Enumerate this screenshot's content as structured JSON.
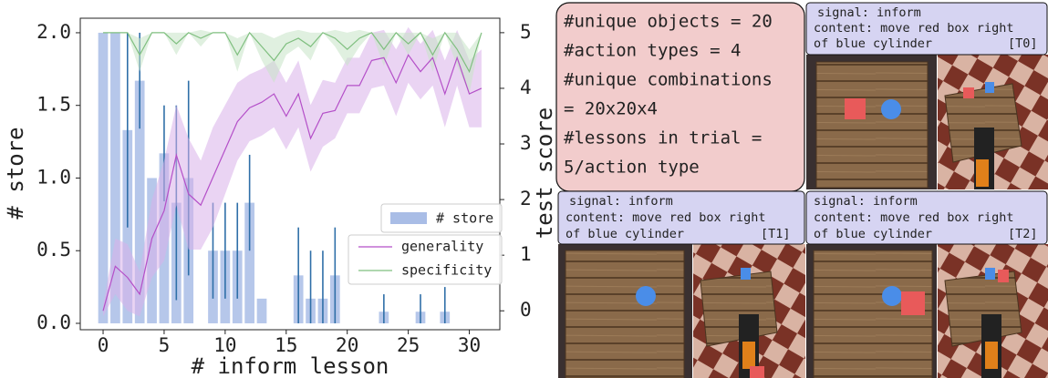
{
  "chart_data": {
    "type": "bar",
    "xlabel": "# inform lesson",
    "ylabel": "# store",
    "y2label": "test score",
    "x": [
      0,
      1,
      2,
      3,
      4,
      5,
      6,
      7,
      8,
      9,
      10,
      11,
      12,
      13,
      14,
      15,
      16,
      17,
      18,
      19,
      20,
      21,
      22,
      23,
      24,
      25,
      26,
      27,
      28,
      29,
      30,
      31
    ],
    "series": [
      {
        "name": "# store",
        "type": "bar",
        "color": "#a9bde6",
        "error_color": "#2f6fa8",
        "values": [
          2.0,
          2.0,
          1.33,
          1.67,
          1.0,
          1.17,
          0.83,
          1.0,
          0,
          0.5,
          0.5,
          0.5,
          0.83,
          0.17,
          0,
          0,
          0.33,
          0.17,
          0.17,
          0.33,
          0,
          0,
          0,
          0.08,
          0,
          0,
          0.08,
          0,
          0.08,
          0,
          0,
          0
        ],
        "error": [
          0,
          0,
          0.67,
          0.33,
          0,
          0.33,
          0.67,
          0.67,
          0,
          0.33,
          0.33,
          0.33,
          0.33,
          0,
          0,
          0,
          0.33,
          0.33,
          0.33,
          0.33,
          0,
          0,
          0,
          0.12,
          0,
          0,
          0.12,
          0,
          0.17,
          0,
          0,
          0
        ]
      },
      {
        "name": "generality",
        "type": "line",
        "axis": "y2",
        "color": "#b44fc8",
        "band_color": "#d8b0ea",
        "values": [
          0.0,
          0.8,
          0.6,
          0.3,
          1.3,
          1.8,
          2.8,
          2.1,
          1.9,
          2.4,
          2.9,
          3.4,
          3.65,
          3.75,
          3.9,
          3.5,
          3.9,
          3.1,
          3.55,
          3.6,
          4.05,
          4.05,
          4.5,
          4.55,
          4.1,
          4.6,
          4.3,
          4.55,
          3.9,
          4.55,
          3.9,
          4.0
        ],
        "band": [
          0.1,
          0.5,
          0.6,
          0.4,
          0.7,
          0.9,
          0.9,
          1.0,
          0.8,
          0.9,
          0.8,
          0.7,
          0.6,
          0.6,
          0.6,
          0.6,
          0.6,
          0.6,
          0.6,
          0.5,
          0.5,
          0.5,
          0.5,
          0.5,
          0.6,
          0.5,
          0.5,
          0.5,
          0.6,
          0.5,
          0.6,
          0.7
        ]
      },
      {
        "name": "specificity",
        "type": "line",
        "axis": "y2",
        "color": "#7fbf7f",
        "band_color": "#c6e3c6",
        "values": [
          5,
          5,
          5,
          4.6,
          5,
          5,
          4.8,
          5,
          4.9,
          5,
          5,
          4.6,
          5,
          4.75,
          4.5,
          4.8,
          4.9,
          4.75,
          5,
          4.9,
          4.7,
          4.9,
          5,
          4.7,
          5,
          4.8,
          5,
          4.6,
          5,
          4.7,
          4.3,
          5
        ],
        "band": [
          0,
          0,
          0,
          0.3,
          0,
          0,
          0.2,
          0,
          0.15,
          0,
          0,
          0.3,
          0,
          0.25,
          0.4,
          0.2,
          0.15,
          0.25,
          0,
          0.15,
          0.3,
          0.15,
          0,
          0.3,
          0,
          0.2,
          0,
          0.3,
          0,
          0.3,
          0.4,
          0
        ]
      }
    ],
    "xlim": [
      -1.87,
      32.5
    ],
    "xticks": [
      0,
      5,
      10,
      15,
      20,
      25,
      30
    ],
    "ylim": [
      -0.044,
      2.1
    ],
    "yticks": [
      {
        "value": 0,
        "label": "0.0"
      },
      {
        "value": 0.5,
        "label": "0.5"
      },
      {
        "value": 1,
        "label": "1.0"
      },
      {
        "value": 1.5,
        "label": "1.5"
      },
      {
        "value": 2,
        "label": "2.0"
      }
    ],
    "y2lim": [
      -0.34,
      5.26
    ],
    "y2ticks": [
      0,
      1,
      2,
      3,
      4,
      5
    ]
  },
  "info_box": {
    "lines": [
      "#unique objects = 20",
      "#action types = 4",
      "#unique combinations",
      "= 20x20x4",
      "#lessons in trial =",
      "5/action type"
    ]
  },
  "panels": [
    {
      "signal": "signal: inform",
      "content": "content: move red box right",
      "object": "of blue cylinder",
      "tag": "[T0]"
    },
    {
      "signal": "signal: inform",
      "content": "content: move red box right",
      "object": "of blue cylinder",
      "tag": "[T1]"
    },
    {
      "signal": "signal: inform",
      "content": "content: move red box right",
      "object": "of blue cylinder",
      "tag": "[T2]"
    }
  ]
}
